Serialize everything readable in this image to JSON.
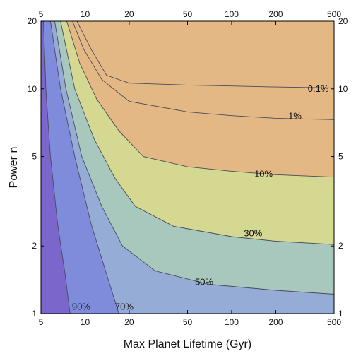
{
  "chart_data": {
    "type": "contour",
    "xlabel": "Max Planet Lifetime (Gyr)",
    "ylabel": "Power n",
    "xscale": "log",
    "yscale": "log",
    "xlim": [
      5,
      500
    ],
    "ylim": [
      1,
      20
    ],
    "x_ticks": [
      5,
      10,
      20,
      50,
      100,
      200,
      500
    ],
    "x_tick_labels": [
      "5",
      "10",
      "20",
      "50",
      "100",
      "200",
      "500"
    ],
    "y_ticks": [
      1,
      2,
      5,
      10,
      20
    ],
    "y_tick_labels": [
      "1",
      "2",
      "5",
      "10",
      "20"
    ],
    "grid": false,
    "regions_bottom_to_top": [
      "#7b66cc",
      "#7f8cdc",
      "#95acd6",
      "#a8c8bd",
      "#d4d890",
      "#e4b884"
    ],
    "contours": [
      {
        "label": "90%",
        "label_at": {
          "x": 9.4,
          "y": 1.07
        },
        "points": [
          [
            5.2,
            20
          ],
          [
            5.4,
            10
          ],
          [
            5.8,
            5
          ],
          [
            6.5,
            2.5
          ],
          [
            7.3,
            1.5
          ],
          [
            7.9,
            1
          ]
        ]
      },
      {
        "label": "70%",
        "label_at": {
          "x": 18.5,
          "y": 1.07
        },
        "points": [
          [
            5.8,
            20
          ],
          [
            6.8,
            10
          ],
          [
            8.5,
            5
          ],
          [
            11,
            2.5
          ],
          [
            14,
            1.5
          ],
          [
            17,
            1
          ]
        ]
      },
      {
        "label": "50%",
        "label_at": {
          "x": 65,
          "y": 1.38
        },
        "points": [
          [
            6.2,
            20
          ],
          [
            7.4,
            10
          ],
          [
            9.5,
            5
          ],
          [
            13,
            3
          ],
          [
            18,
            2
          ],
          [
            30,
            1.55
          ],
          [
            70,
            1.35
          ],
          [
            200,
            1.27
          ],
          [
            500,
            1.22
          ]
        ]
      },
      {
        "label": "30%",
        "label_at": {
          "x": 140,
          "y": 2.27
        },
        "points": [
          [
            6.8,
            20
          ],
          [
            8.5,
            10
          ],
          [
            11.5,
            6
          ],
          [
            16,
            4
          ],
          [
            22,
            3
          ],
          [
            40,
            2.45
          ],
          [
            100,
            2.2
          ],
          [
            200,
            2.1
          ],
          [
            500,
            2.03
          ]
        ]
      },
      {
        "label": "10%",
        "label_at": {
          "x": 165,
          "y": 4.18
        },
        "points": [
          [
            7.5,
            20
          ],
          [
            9.2,
            13
          ],
          [
            12,
            9
          ],
          [
            17,
            6.5
          ],
          [
            25,
            5
          ],
          [
            50,
            4.5
          ],
          [
            100,
            4.3
          ],
          [
            200,
            4.15
          ],
          [
            500,
            4.05
          ]
        ]
      },
      {
        "label": "1%",
        "label_at": {
          "x": 270,
          "y": 7.55
        },
        "points": [
          [
            8.2,
            20
          ],
          [
            9.8,
            15
          ],
          [
            13,
            11
          ],
          [
            20,
            8.8
          ],
          [
            50,
            7.9
          ],
          [
            100,
            7.6
          ],
          [
            200,
            7.4
          ],
          [
            500,
            7.3
          ]
        ]
      },
      {
        "label": "0.1%",
        "label_at": {
          "x": 390,
          "y": 10.0
        },
        "points": [
          [
            8.8,
            20
          ],
          [
            11,
            15
          ],
          [
            14,
            11.5
          ],
          [
            20,
            10.6
          ],
          [
            50,
            10.4
          ],
          [
            100,
            10.3
          ],
          [
            200,
            10.2
          ],
          [
            500,
            10.1
          ]
        ]
      }
    ]
  }
}
